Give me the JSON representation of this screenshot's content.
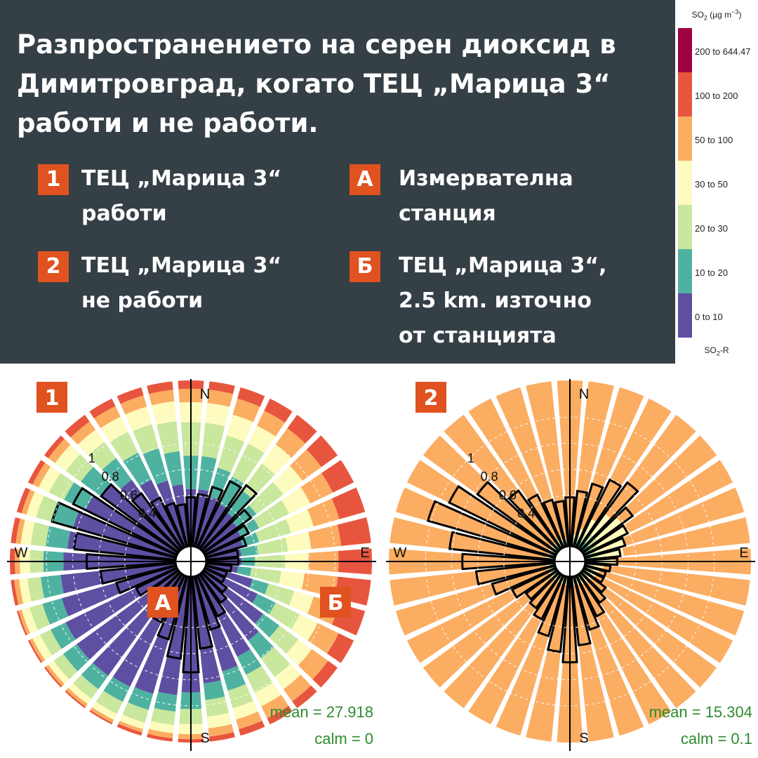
{
  "header": {
    "title": "Разпространението на серен диоксид в Димитровград, когато ТЕЦ „Марица 3“ работи и не работи.",
    "items": [
      {
        "badge": "1",
        "lines": [
          "ТЕЦ „Марица 3“",
          "работи"
        ]
      },
      {
        "badge": "2",
        "lines": [
          "ТЕЦ „Марица 3“",
          "не работи"
        ]
      },
      {
        "badge": "А",
        "lines": [
          "Измервателна",
          "станция"
        ]
      },
      {
        "badge": "Б",
        "lines": [
          "ТЕЦ „Марица 3“,",
          "2.5 km. източно",
          "от станцията"
        ]
      }
    ]
  },
  "legend": {
    "title_main": "SO",
    "title_sub": "2",
    "title_units": " (µg m",
    "title_sup": "−3",
    "title_close": ")",
    "foot_main": "SO",
    "foot_sub": "2",
    "foot_rest": "-R",
    "bins": [
      {
        "label": "200 to 644.47",
        "color": "#9e0142"
      },
      {
        "label": "100 to 200",
        "color": "#e8553e"
      },
      {
        "label": "50 to 100",
        "color": "#fbad62"
      },
      {
        "label": "30 to 50",
        "color": "#fdfbbd"
      },
      {
        "label": "20 to 30",
        "color": "#c9e79d"
      },
      {
        "label": "10 to 20",
        "color": "#4fb2a1"
      },
      {
        "label": "0 to 10",
        "color": "#5e4fa2"
      }
    ]
  },
  "chart_data": [
    {
      "type": "pollution-rose",
      "badge": "1",
      "directions": {
        "n": "N",
        "e": "E",
        "s": "S",
        "w": "W"
      },
      "radial_ticks": [
        "1",
        "0.8",
        "0.6",
        "0.4"
      ],
      "mean": "mean = 27.918",
      "calm": "calm = 0",
      "markers": [
        {
          "label": "А"
        },
        {
          "label": "Б"
        }
      ],
      "sector_deg": 10,
      "sectors_start_deg": 0,
      "proportions": [
        [
          0.35,
          0.2,
          0.2,
          0.12,
          0.08,
          0.05,
          0
        ],
        [
          0.35,
          0.2,
          0.2,
          0.12,
          0.08,
          0.05,
          0
        ],
        [
          0.32,
          0.18,
          0.2,
          0.13,
          0.1,
          0.07,
          0
        ],
        [
          0.3,
          0.18,
          0.22,
          0.12,
          0.1,
          0.08,
          0
        ],
        [
          0.28,
          0.16,
          0.2,
          0.14,
          0.12,
          0.1,
          0
        ],
        [
          0.26,
          0.14,
          0.2,
          0.14,
          0.14,
          0.12,
          0
        ],
        [
          0.25,
          0.12,
          0.2,
          0.14,
          0.15,
          0.14,
          0
        ],
        [
          0.24,
          0.1,
          0.2,
          0.14,
          0.16,
          0.16,
          0
        ],
        [
          0.22,
          0.1,
          0.18,
          0.14,
          0.18,
          0.18,
          0
        ],
        [
          0.22,
          0.08,
          0.18,
          0.14,
          0.18,
          0.2,
          0
        ],
        [
          0.2,
          0.08,
          0.18,
          0.14,
          0.2,
          0.2,
          0
        ],
        [
          0.3,
          0.1,
          0.16,
          0.12,
          0.16,
          0.16,
          0
        ],
        [
          0.36,
          0.12,
          0.16,
          0.12,
          0.14,
          0.1,
          0
        ],
        [
          0.45,
          0.12,
          0.14,
          0.1,
          0.12,
          0.07,
          0
        ],
        [
          0.5,
          0.13,
          0.14,
          0.09,
          0.09,
          0.05,
          0
        ],
        [
          0.55,
          0.12,
          0.12,
          0.09,
          0.08,
          0.04,
          0
        ],
        [
          0.6,
          0.12,
          0.11,
          0.07,
          0.06,
          0.04,
          0
        ],
        [
          0.65,
          0.1,
          0.1,
          0.07,
          0.05,
          0.03,
          0
        ],
        [
          0.7,
          0.1,
          0.09,
          0.06,
          0.03,
          0.02,
          0
        ],
        [
          0.72,
          0.1,
          0.08,
          0.05,
          0.03,
          0.02,
          0
        ],
        [
          0.74,
          0.1,
          0.08,
          0.04,
          0.02,
          0.02,
          0
        ],
        [
          0.75,
          0.1,
          0.08,
          0.04,
          0.02,
          0.01,
          0
        ],
        [
          0.76,
          0.1,
          0.07,
          0.04,
          0.02,
          0.01,
          0
        ],
        [
          0.76,
          0.1,
          0.07,
          0.04,
          0.02,
          0.01,
          0
        ],
        [
          0.75,
          0.1,
          0.07,
          0.05,
          0.02,
          0.01,
          0
        ],
        [
          0.72,
          0.12,
          0.08,
          0.05,
          0.02,
          0.01,
          0
        ],
        [
          0.7,
          0.12,
          0.08,
          0.05,
          0.03,
          0.02,
          0
        ],
        [
          0.68,
          0.12,
          0.08,
          0.06,
          0.03,
          0.03,
          0
        ],
        [
          0.66,
          0.13,
          0.09,
          0.06,
          0.03,
          0.03,
          0
        ],
        [
          0.65,
          0.14,
          0.09,
          0.06,
          0.03,
          0.03,
          0
        ],
        [
          0.62,
          0.14,
          0.1,
          0.07,
          0.04,
          0.03,
          0
        ],
        [
          0.58,
          0.15,
          0.11,
          0.08,
          0.05,
          0.03,
          0
        ],
        [
          0.52,
          0.16,
          0.12,
          0.09,
          0.06,
          0.05,
          0
        ],
        [
          0.46,
          0.18,
          0.14,
          0.1,
          0.07,
          0.05,
          0
        ],
        [
          0.42,
          0.2,
          0.15,
          0.11,
          0.07,
          0.05,
          0
        ],
        [
          0.38,
          0.2,
          0.18,
          0.12,
          0.07,
          0.05,
          0
        ]
      ],
      "frequency": [
        0.3,
        0.32,
        0.38,
        0.45,
        0.48,
        0.36,
        0.3,
        0.26,
        0.2,
        0.2,
        0.16,
        0.14,
        0.14,
        0.18,
        0.22,
        0.28,
        0.34,
        0.44,
        0.58,
        0.5,
        0.4,
        0.32,
        0.26,
        0.22,
        0.28,
        0.38,
        0.46,
        0.54,
        0.62,
        0.78,
        0.7,
        0.58,
        0.42,
        0.34,
        0.28,
        0.26
      ]
    },
    {
      "type": "pollution-rose",
      "badge": "2",
      "directions": {
        "n": "N",
        "e": "E",
        "s": "S",
        "w": "W"
      },
      "radial_ticks": [
        "1",
        "0.8",
        "0.6",
        "0.4"
      ],
      "mean": "mean = 15.304",
      "calm": "calm = 0.1",
      "markers": [],
      "sector_deg": 10,
      "sectors_start_deg": 0,
      "proportions": [
        [
          0,
          0.03,
          0.02,
          0,
          0.95,
          0,
          0
        ],
        [
          0,
          0.03,
          0.03,
          0.02,
          0.92,
          0,
          0
        ],
        [
          0,
          0.04,
          0.03,
          0.05,
          0.88,
          0,
          0
        ],
        [
          0,
          0.05,
          0.05,
          0.1,
          0.8,
          0,
          0
        ],
        [
          0,
          0.06,
          0.06,
          0.15,
          0.73,
          0,
          0
        ],
        [
          0,
          0.06,
          0.06,
          0.18,
          0.7,
          0,
          0
        ],
        [
          0,
          0.05,
          0.05,
          0.2,
          0.7,
          0,
          0
        ],
        [
          0,
          0.04,
          0.04,
          0.18,
          0.74,
          0,
          0
        ],
        [
          0,
          0.04,
          0.04,
          0.16,
          0.76,
          0,
          0
        ],
        [
          0,
          0.03,
          0.03,
          0.12,
          0.82,
          0,
          0
        ],
        [
          0,
          0.03,
          0.03,
          0.06,
          0.88,
          0,
          0
        ],
        [
          0,
          0.03,
          0.03,
          0.04,
          0.9,
          0,
          0
        ],
        [
          0,
          0.03,
          0.03,
          0.03,
          0.91,
          0,
          0
        ],
        [
          0,
          0.02,
          0.03,
          0.03,
          0.92,
          0,
          0
        ],
        [
          0,
          0.02,
          0.03,
          0.02,
          0.93,
          0,
          0
        ],
        [
          0,
          0.02,
          0.03,
          0.02,
          0.93,
          0,
          0
        ],
        [
          0,
          0.02,
          0.02,
          0.02,
          0.94,
          0,
          0
        ],
        [
          0,
          0.02,
          0.02,
          0.02,
          0.94,
          0,
          0
        ],
        [
          0,
          0.02,
          0.02,
          0.02,
          0.94,
          0,
          0
        ],
        [
          0,
          0.02,
          0.02,
          0.02,
          0.94,
          0,
          0
        ],
        [
          0,
          0.02,
          0.02,
          0.02,
          0.94,
          0,
          0
        ],
        [
          0,
          0.02,
          0.02,
          0.02,
          0.94,
          0,
          0
        ],
        [
          0,
          0.02,
          0.02,
          0.02,
          0.94,
          0,
          0
        ],
        [
          0,
          0.02,
          0.02,
          0.02,
          0.94,
          0,
          0
        ],
        [
          0,
          0.02,
          0.02,
          0.02,
          0.94,
          0,
          0
        ],
        [
          0,
          0.02,
          0.02,
          0.02,
          0.94,
          0,
          0
        ],
        [
          0,
          0.02,
          0.02,
          0.02,
          0.94,
          0,
          0
        ],
        [
          0,
          0.02,
          0.02,
          0.02,
          0.94,
          0,
          0
        ],
        [
          0,
          0.02,
          0.02,
          0.02,
          0.94,
          0,
          0
        ],
        [
          0,
          0.02,
          0.02,
          0.02,
          0.94,
          0,
          0
        ],
        [
          0,
          0.02,
          0.02,
          0.02,
          0.94,
          0,
          0
        ],
        [
          0,
          0.02,
          0.02,
          0.02,
          0.94,
          0,
          0
        ],
        [
          0,
          0.02,
          0.02,
          0.02,
          0.94,
          0,
          0
        ],
        [
          0,
          0.02,
          0.02,
          0.02,
          0.94,
          0,
          0
        ],
        [
          0,
          0.02,
          0.02,
          0.02,
          0.94,
          0,
          0
        ],
        [
          0,
          0.03,
          0.02,
          0.01,
          0.94,
          0,
          0
        ]
      ],
      "frequency": [
        0.3,
        0.34,
        0.4,
        0.46,
        0.5,
        0.38,
        0.3,
        0.26,
        0.22,
        0.2,
        0.16,
        0.14,
        0.14,
        0.18,
        0.22,
        0.28,
        0.34,
        0.42,
        0.52,
        0.46,
        0.38,
        0.3,
        0.26,
        0.24,
        0.3,
        0.4,
        0.48,
        0.56,
        0.64,
        0.8,
        0.72,
        0.6,
        0.44,
        0.36,
        0.3,
        0.28
      ]
    }
  ]
}
